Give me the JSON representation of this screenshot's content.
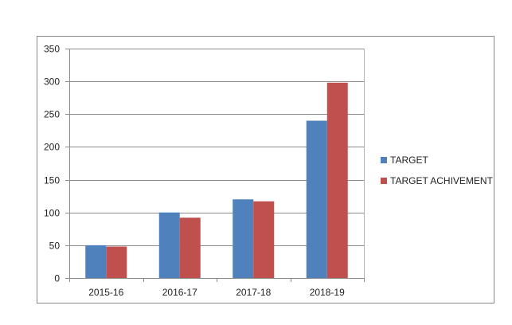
{
  "chart_data": {
    "type": "bar",
    "categories": [
      "2015-16",
      "2016-17",
      "2017-18",
      "2018-19"
    ],
    "series": [
      {
        "name": "TARGET",
        "values": [
          50,
          100,
          120,
          240
        ],
        "color": "#4F81BD"
      },
      {
        "name": "TARGET ACHIVEMENT",
        "values": [
          48,
          92,
          117,
          298
        ],
        "color": "#C0504D"
      }
    ],
    "title": "",
    "xlabel": "",
    "ylabel": "",
    "ylim": [
      0,
      350
    ],
    "yticks": [
      0,
      50,
      100,
      150,
      200,
      250,
      300,
      350
    ],
    "grid": true,
    "legend": "right"
  }
}
